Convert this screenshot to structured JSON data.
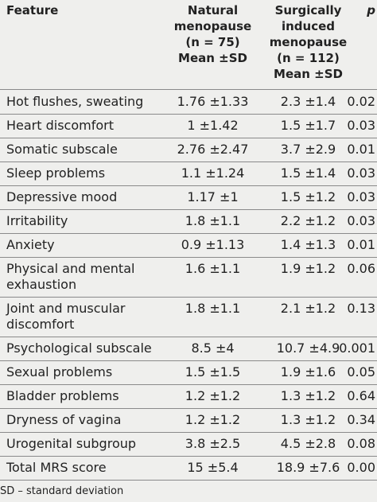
{
  "table": {
    "header": [
      "Feature",
      [
        "Natural",
        "menopause",
        "(n = 75)",
        "Mean ±SD"
      ],
      [
        "Surgically",
        "induced",
        "menopause",
        "(n = 112)",
        "Mean ±SD"
      ],
      "p"
    ],
    "rows": [
      [
        "Hot flushes, sweating",
        "1.76 ±1.33",
        "2.3 ±1.4",
        "0.02"
      ],
      [
        "Heart discomfort",
        "1 ±1.42",
        "1.5 ±1.7",
        "0.03"
      ],
      [
        "Somatic subscale",
        "2.76 ±2.47",
        "3.7 ±2.9",
        "0.01"
      ],
      [
        "Sleep problems",
        "1.1 ±1.24",
        "1.5 ±1.4",
        "0.03"
      ],
      [
        "Depressive mood",
        "1.17 ±1",
        "1.5 ±1.2",
        "0.03"
      ],
      [
        "Irritability",
        "1.8 ±1.1",
        "2.2 ±1.2",
        "0.03"
      ],
      [
        "Anxiety",
        "0.9 ±1.13",
        "1.4 ±1.3",
        "0.01"
      ],
      [
        "Physical and mental exhaustion",
        "1.6 ±1.1",
        "1.9 ±1.2",
        "0.06"
      ],
      [
        "Joint and muscular discomfort",
        "1.8 ±1.1",
        "2.1 ±1.2",
        "0.13"
      ],
      [
        "Psychological subscale",
        "8.5 ±4",
        "10.7 ±4.9",
        "0.001"
      ],
      [
        "Sexual problems",
        "1.5 ±1.5",
        "1.9 ±1.6",
        "0.05"
      ],
      [
        "Bladder problems",
        "1.2 ±1.2",
        "1.3 ±1.2",
        "0.64"
      ],
      [
        "Dryness of vagina",
        "1.2 ±1.2",
        "1.3 ±1.2",
        "0.34"
      ],
      [
        "Urogenital subgroup",
        "3.8 ±2.5",
        "4.5 ±2.8",
        "0.08"
      ],
      [
        "Total MRS score",
        "15 ±5.4",
        "18.9 ±7.6",
        "0.00"
      ]
    ]
  },
  "footnote": "SD – standard deviation"
}
